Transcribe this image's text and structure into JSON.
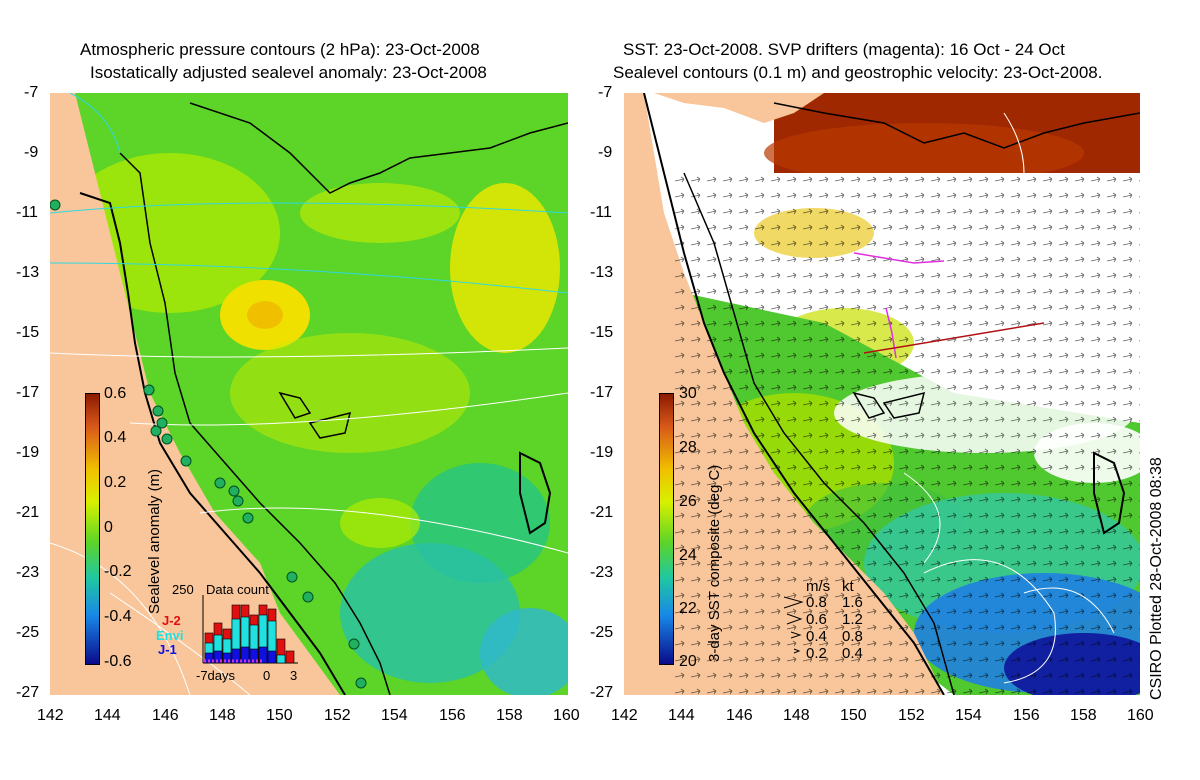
{
  "left": {
    "title_line1": "Atmospheric pressure contours (2 hPa): 23-Oct-2008",
    "title_line2": "Isostatically adjusted sealevel anomaly: 23-Oct-2008",
    "colorbar_label": "Sealevel anomaly (m)",
    "colorbar_ticks": [
      "0.6",
      "0.4",
      "0.2",
      "0",
      "-0.2",
      "-0.4",
      "-0.6"
    ],
    "colors": {
      "land": "#f8c69a",
      "high": "#8b1a00",
      "mid": "#6fdc1e",
      "low": "#0a0a8a"
    },
    "data_count": {
      "title": "Data count",
      "y_max_label": "250",
      "x_labels": [
        "-7days",
        "0",
        "3"
      ],
      "legend": [
        {
          "name": "J-2",
          "color": "#e01010"
        },
        {
          "name": "Envi",
          "color": "#20e0e0"
        },
        {
          "name": "J-1",
          "color": "#1010e0"
        }
      ]
    }
  },
  "right": {
    "title_line1": "SST: 23-Oct-2008. SVP drifters (magenta): 16 Oct - 24 Oct",
    "title_line2": "Sealevel contours (0.1 m) and geostrophic velocity: 23-Oct-2008.",
    "colorbar_label": "3-day SST composite (deg C)",
    "colorbar_ticks": [
      "30",
      "28",
      "26",
      "24",
      "22",
      "20"
    ],
    "velocity_key": {
      "header_ms": "m/s",
      "header_kt": "kt",
      "rows": [
        {
          "ms": "0.8",
          "kt": "1.6"
        },
        {
          "ms": "0.6",
          "kt": "1.2"
        },
        {
          "ms": "0.4",
          "kt": "0.8"
        },
        {
          "ms": "0.2",
          "kt": "0.4"
        }
      ]
    },
    "plotted_note": "CSIRO Plotted 28-Oct-2008 08:38"
  },
  "axes": {
    "lat_ticks": [
      "-7",
      "-9",
      "-11",
      "-13",
      "-15",
      "-17",
      "-19",
      "-21",
      "-23",
      "-25",
      "-27"
    ],
    "lon_ticks": [
      "142",
      "144",
      "146",
      "148",
      "150",
      "152",
      "154",
      "156",
      "158",
      "160"
    ]
  }
}
